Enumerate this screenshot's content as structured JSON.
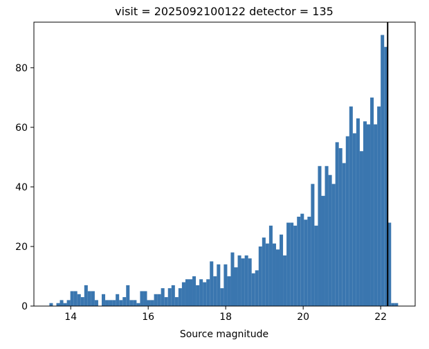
{
  "chart_data": {
    "type": "histogram",
    "title": "visit = 2025092100122 detector = 135",
    "x_label": "Source magnitude",
    "bins": [
      13.45,
      13.54,
      13.63,
      13.72,
      13.81,
      13.9,
      13.99,
      14.08,
      14.17,
      14.26,
      14.35,
      14.44,
      14.53,
      14.62,
      14.71,
      14.8,
      14.89,
      14.98,
      15.07,
      15.16,
      15.25,
      15.34,
      15.43,
      15.52,
      15.61,
      15.7,
      15.79,
      15.88,
      15.97,
      16.06,
      16.15,
      16.24,
      16.33,
      16.42,
      16.51,
      16.6,
      16.69,
      16.78,
      16.87,
      16.96,
      17.05,
      17.14,
      17.23,
      17.32,
      17.41,
      17.5,
      17.59,
      17.68,
      17.77,
      17.86,
      17.95,
      18.04,
      18.13,
      18.22,
      18.31,
      18.4,
      18.49,
      18.58,
      18.67,
      18.76,
      18.85,
      18.94,
      19.03,
      19.12,
      19.21,
      19.3,
      19.39,
      19.48,
      19.57,
      19.66,
      19.75,
      19.84,
      19.93,
      20.02,
      20.11,
      20.2,
      20.29,
      20.38,
      20.47,
      20.56,
      20.65,
      20.74,
      20.83,
      20.92,
      21.01,
      21.1,
      21.19,
      21.28,
      21.37,
      21.46,
      21.55,
      21.64,
      21.73,
      21.82,
      21.91,
      22.0,
      22.09,
      22.18,
      22.27,
      22.36,
      22.45
    ],
    "values": [
      1,
      0,
      1,
      2,
      1,
      2,
      5,
      5,
      4,
      3,
      7,
      5,
      5,
      2,
      0,
      4,
      2,
      2,
      2,
      4,
      2,
      3,
      7,
      2,
      2,
      1,
      5,
      5,
      2,
      2,
      4,
      4,
      6,
      3,
      6,
      7,
      3,
      6,
      8,
      9,
      9,
      10,
      7,
      9,
      8,
      9,
      15,
      10,
      14,
      6,
      14,
      10,
      18,
      13,
      17,
      16,
      17,
      16,
      11,
      12,
      20,
      23,
      21,
      27,
      21,
      19,
      24,
      17,
      28,
      28,
      27,
      30,
      31,
      29,
      30,
      41,
      27,
      47,
      37,
      47,
      44,
      41,
      55,
      53,
      48,
      57,
      67,
      58,
      63,
      52,
      62,
      61,
      70,
      61,
      67,
      91,
      87,
      28,
      1,
      1
    ],
    "color": "#3a76af",
    "vline": 22.18,
    "vline_color": "#000000",
    "xlim": [
      13.05,
      22.89
    ],
    "xticks": [
      14,
      16,
      18,
      20,
      22
    ],
    "ylim": [
      0,
      95.3
    ],
    "yticks": [
      0,
      20,
      40,
      60,
      80
    ]
  }
}
